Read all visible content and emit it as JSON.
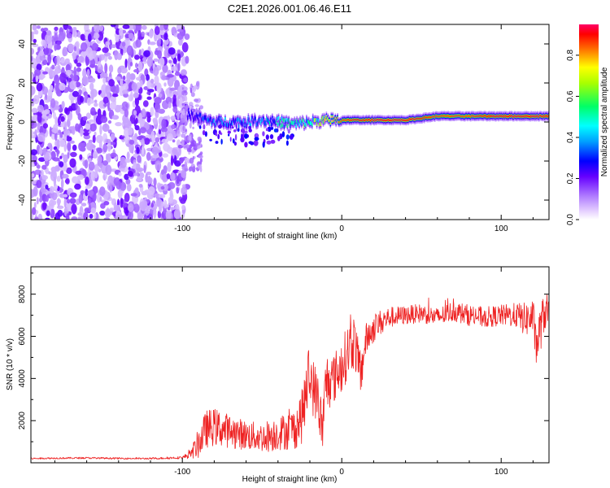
{
  "title": "C2E1.2026.001.06.46.E11",
  "chart_data": [
    {
      "type": "heatmap",
      "title": "",
      "xlabel": "Height of straight line (km)",
      "ylabel": "Frequency (Hz)",
      "xlim": [
        -195,
        130
      ],
      "ylim": [
        -50,
        50
      ],
      "xticks": [
        -100,
        0,
        100
      ],
      "xtick_labels": [
        "-100",
        "0",
        "100"
      ],
      "yticks": [
        -40,
        -20,
        0,
        20,
        40
      ],
      "ytick_labels": [
        "-40",
        "-20",
        "0",
        "20",
        "40"
      ],
      "colorbar": {
        "label": "Normalized spectral amplitude",
        "range": [
          0.0,
          0.95
        ],
        "ticks": [
          0.0,
          0.2,
          0.4,
          0.6,
          0.8
        ],
        "tick_labels": [
          "0.0",
          "0.2",
          "0.4",
          "0.6",
          "0.8"
        ],
        "colormap": [
          "#ffffff",
          "#b07cff",
          "#6600ff",
          "#0000ff",
          "#00ffff",
          "#00ff66",
          "#ffff00",
          "#ff3300",
          "#ff0066"
        ]
      },
      "features": [
        {
          "name": "noise region",
          "x_range": [
            -195,
            -97
          ],
          "y_range": [
            -50,
            50
          ],
          "amplitude": 0.15
        },
        {
          "name": "signal band",
          "x": [
            -97,
            -90,
            -80,
            -70,
            -60,
            -50,
            -40,
            -30,
            -20,
            -10,
            0,
            20,
            40,
            60,
            80,
            100,
            120,
            130
          ],
          "y": [
            4,
            2,
            0,
            0,
            0,
            1,
            0,
            -1,
            0,
            1,
            1,
            1,
            1,
            3,
            3,
            3,
            3,
            3
          ],
          "amplitude": [
            0.35,
            0.4,
            0.45,
            0.45,
            0.45,
            0.5,
            0.55,
            0.6,
            0.65,
            0.75,
            0.85,
            0.9,
            0.9,
            0.85,
            0.85,
            0.9,
            0.9,
            0.9
          ]
        }
      ]
    },
    {
      "type": "line",
      "title": "",
      "xlabel": "Height of straight line (km)",
      "ylabel": "SNR (10 * v/v)",
      "xlim": [
        -195,
        130
      ],
      "ylim": [
        0,
        9300
      ],
      "xticks": [
        -100,
        0,
        100
      ],
      "xtick_labels": [
        "-100",
        "0",
        "100"
      ],
      "yticks": [
        2000,
        4000,
        6000,
        8000
      ],
      "ytick_labels": [
        "2000",
        "4000",
        "6000",
        "8000"
      ],
      "series": [
        {
          "name": "SNR",
          "color": "#ee2222",
          "x": [
            -195,
            -180,
            -160,
            -140,
            -120,
            -100,
            -95,
            -90,
            -85,
            -80,
            -70,
            -60,
            -50,
            -45,
            -40,
            -35,
            -30,
            -25,
            -22,
            -20,
            -18,
            -15,
            -12,
            -10,
            -5,
            0,
            5,
            8,
            10,
            12,
            15,
            20,
            25,
            30,
            40,
            50,
            60,
            70,
            80,
            90,
            100,
            110,
            115,
            120,
            122,
            125,
            128,
            130
          ],
          "y": [
            200,
            220,
            230,
            210,
            200,
            250,
            400,
            900,
            1600,
            1700,
            1500,
            1300,
            1200,
            1300,
            1400,
            1500,
            1600,
            2200,
            3500,
            4200,
            3600,
            3000,
            1500,
            3800,
            4000,
            4600,
            5500,
            5800,
            4800,
            4200,
            5800,
            6400,
            6700,
            6900,
            7000,
            7100,
            6900,
            7200,
            7000,
            6900,
            7000,
            7000,
            6800,
            6900,
            5500,
            6500,
            7300,
            7000
          ],
          "noise": [
            40,
            40,
            40,
            40,
            40,
            60,
            200,
            700,
            900,
            900,
            800,
            700,
            700,
            800,
            800,
            900,
            1000,
            1300,
            1600,
            1500,
            1400,
            1300,
            1200,
            1500,
            1200,
            1300,
            1300,
            1300,
            1200,
            1100,
            800,
            700,
            600,
            500,
            450,
            450,
            450,
            500,
            500,
            500,
            500,
            600,
            800,
            900,
            1000,
            1100,
            900,
            700
          ]
        }
      ]
    }
  ]
}
